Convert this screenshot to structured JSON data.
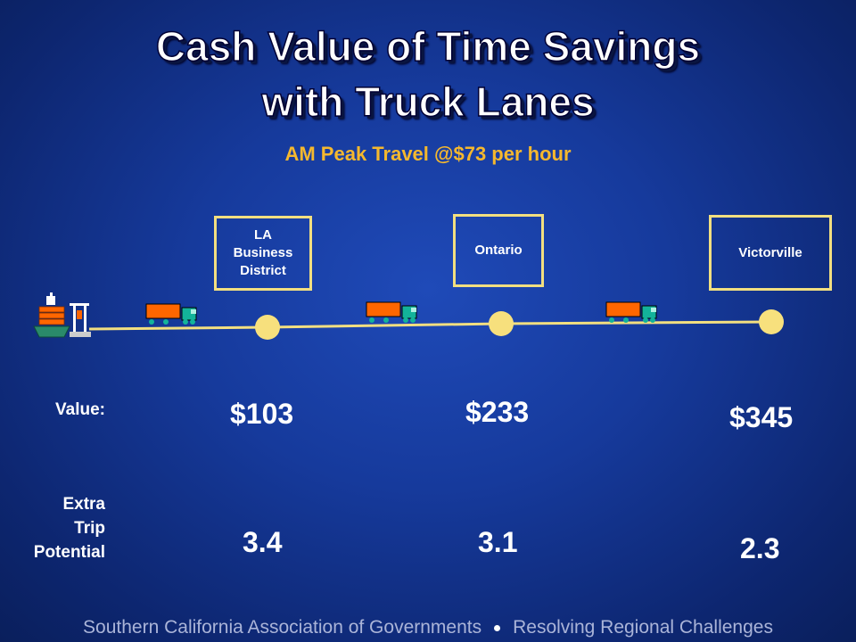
{
  "title": {
    "line1": "Cash Value of Time Savings",
    "line2": "with Truck Lanes"
  },
  "subtitle": "AM Peak Travel @$73 per hour",
  "cities": [
    {
      "lines": [
        "LA",
        "Business",
        "District"
      ]
    },
    {
      "lines": [
        "Ontario"
      ]
    },
    {
      "lines": [
        "Victorville"
      ]
    }
  ],
  "labels": {
    "value": "Value:",
    "extra_trip": [
      "Extra",
      "Trip",
      "Potential"
    ]
  },
  "values": [
    "$103",
    "$233",
    "$345"
  ],
  "extra_trips": [
    "3.4",
    "3.1",
    "2.3"
  ],
  "footer": {
    "left": "Southern California Association of Governments",
    "right": "Resolving Regional Challenges"
  },
  "icons": [
    "cargo-ship-icon",
    "truck-icon",
    "truck-icon",
    "truck-icon"
  ],
  "colors": {
    "title_accent": "#f5b82e",
    "route_line": "#f2df80",
    "node_fill": "#f7e07d",
    "truck_trailer": "#ff6600",
    "truck_cab": "#13b39a",
    "background": "#163a9c"
  }
}
